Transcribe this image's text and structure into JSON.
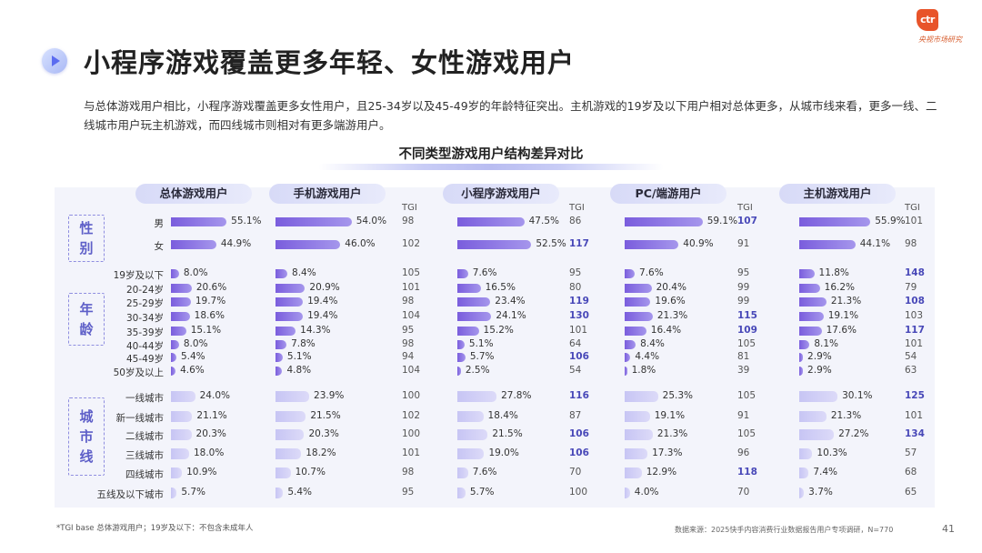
{
  "logo": {
    "mark": "ctr",
    "text": "央视市场研究"
  },
  "page_title": "小程序游戏覆盖更多年轻、女性游戏用户",
  "intro": "与总体游戏用户相比，小程序游戏覆盖更多女性用户，且25-34岁以及45-49岁的年龄特征突出。主机游戏的19岁及以下用户相对总体更多，从城市线来看，更多一线、二线城市用户玩主机游戏，而四线城市则相对有更多端游用户。",
  "chart_data": {
    "type": "bar",
    "title": "不同类型游戏用户结构差异对比",
    "tgi_label": "TGI",
    "groups": [
      {
        "name": "性别",
        "rows": [
          "男",
          "女"
        ]
      },
      {
        "name": "年龄",
        "rows": [
          "19岁及以下",
          "20-24岁",
          "25-29岁",
          "30-34岁",
          "35-39岁",
          "40-44岁",
          "45-49岁",
          "50岁及以上"
        ]
      },
      {
        "name": "城市线",
        "rows": [
          "一线城市",
          "新一线城市",
          "二线城市",
          "三线城市",
          "四线城市",
          "五线及以下城市"
        ]
      }
    ],
    "series": [
      {
        "name": "总体游戏用户",
        "values": [
          55.1,
          44.9,
          8.0,
          20.6,
          19.7,
          18.6,
          15.1,
          8.0,
          5.4,
          4.6,
          24.0,
          21.1,
          20.3,
          18.0,
          10.9,
          5.7
        ],
        "tgi": []
      },
      {
        "name": "手机游戏用户",
        "values": [
          54.0,
          46.0,
          8.4,
          20.9,
          19.4,
          19.4,
          14.3,
          7.8,
          5.1,
          4.8,
          23.9,
          21.5,
          20.3,
          18.2,
          10.7,
          5.4
        ],
        "tgi": [
          98,
          102,
          105,
          101,
          98,
          104,
          95,
          98,
          94,
          104,
          100,
          102,
          100,
          101,
          98,
          95
        ]
      },
      {
        "name": "小程序游戏用户",
        "values": [
          47.5,
          52.5,
          7.6,
          16.5,
          23.4,
          24.1,
          15.2,
          5.1,
          5.7,
          2.5,
          27.8,
          18.4,
          21.5,
          19.0,
          7.6,
          5.7
        ],
        "tgi": [
          86,
          117,
          95,
          80,
          119,
          130,
          101,
          64,
          106,
          54,
          116,
          87,
          106,
          106,
          70,
          100
        ]
      },
      {
        "name": "PC/端游用户",
        "values": [
          59.1,
          40.9,
          7.6,
          20.4,
          19.6,
          21.3,
          16.4,
          8.4,
          4.4,
          1.8,
          25.3,
          19.1,
          21.3,
          17.3,
          12.9,
          4.0
        ],
        "tgi": [
          107,
          91,
          95,
          99,
          99,
          115,
          109,
          105,
          81,
          39,
          105,
          91,
          105,
          96,
          118,
          70
        ]
      },
      {
        "name": "主机游戏用户",
        "values": [
          55.9,
          44.1,
          11.8,
          16.2,
          21.3,
          19.1,
          17.6,
          8.1,
          2.9,
          2.9,
          30.1,
          21.3,
          27.2,
          10.3,
          7.4,
          3.7
        ],
        "tgi": [
          101,
          98,
          148,
          79,
          108,
          103,
          117,
          101,
          54,
          63,
          125,
          101,
          134,
          57,
          68,
          65
        ]
      }
    ],
    "highlight_threshold": 106
  },
  "colors": {
    "bar_dark": "#7a5ddd",
    "bar_light": "#c7c5f4",
    "highlight_tgi": "#4848b8"
  },
  "footnote": "*TGI base 总体游戏用户；19岁及以下：不包含未成年人",
  "source": "数据来源：2025快手内容消费行业数据报告用户专项调研，N=770",
  "page_number": "41"
}
